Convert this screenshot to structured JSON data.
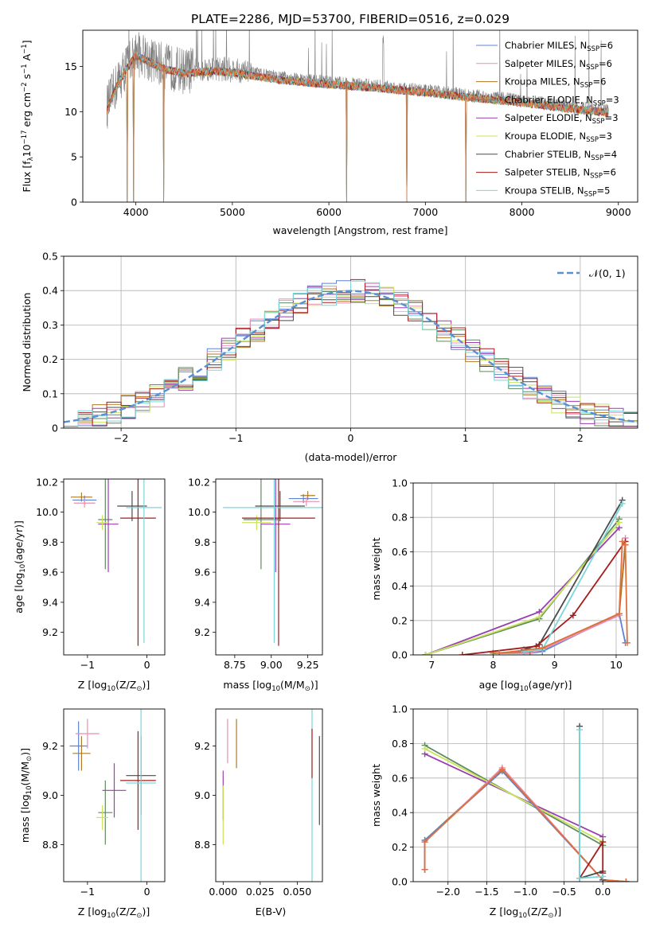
{
  "figure_title": "PLATE=2286, MJD=53700, FIBERID=0516, z=0.029",
  "colors": {
    "Chabrier MILES": "#5b84d6",
    "Salpeter MILES": "#e88fb4",
    "Kroupa MILES": "#b07a24",
    "Chabrier ELODIE": "#5f8a5f",
    "Salpeter ELODIE": "#9a3fb0",
    "Kroupa ELODIE": "#c9e45a",
    "Chabrier STELIB": "#4a4a4a",
    "Salpeter STELIB": "#a51c1c",
    "Kroupa STELIB": "#7ad6da",
    "data": "#808080",
    "model": "#e0703a",
    "normal": "#5a8fd6",
    "grid": "#b0b0b0"
  },
  "chart_data": [
    {
      "type": "line",
      "title": "PLATE=2286, MJD=53700, FIBERID=0516, z=0.029",
      "xlabel": "wavelength [Angstrom, rest frame]",
      "ylabel": "Flux [f_λ 10^-17 erg cm^-2 s^-1 A^-1]",
      "xlim": [
        3450,
        9200
      ],
      "ylim": [
        0,
        19
      ],
      "xticks": [
        4000,
        5000,
        6000,
        7000,
        8000,
        9000
      ],
      "yticks": [
        0,
        5,
        10,
        15
      ],
      "grid": false,
      "legend": "top-right",
      "series": [
        {
          "name": "Chabrier MILES, N_SSP=6"
        },
        {
          "name": "Salpeter MILES, N_SSP=6"
        },
        {
          "name": "Kroupa MILES, N_SSP=6"
        },
        {
          "name": "Chabrier ELODIE, N_SSP=3"
        },
        {
          "name": "Salpeter ELODIE, N_SSP=3"
        },
        {
          "name": "Kroupa ELODIE, N_SSP=3"
        },
        {
          "name": "Chabrier STELIB, N_SSP=4"
        },
        {
          "name": "Salpeter STELIB, N_SSP=6"
        },
        {
          "name": "Kroupa STELIB, N_SSP=5"
        }
      ],
      "continuum": {
        "x": [
          3700,
          3800,
          3900,
          4000,
          4100,
          4300,
          4500,
          4800,
          5000,
          5500,
          6000,
          6500,
          7000,
          7500,
          8000,
          8500,
          8900
        ],
        "y": [
          10.5,
          13.0,
          15.0,
          16.5,
          16.0,
          15.0,
          14.5,
          14.8,
          14.6,
          13.8,
          13.3,
          12.9,
          12.4,
          11.8,
          11.3,
          10.6,
          10.2
        ]
      },
      "model_drops": [
        3910,
        3975,
        4290,
        6185,
        6810,
        7420
      ]
    },
    {
      "type": "line",
      "xlabel": "(data-model)/error",
      "ylabel": "Normed distribution",
      "xlim": [
        -2.5,
        2.5
      ],
      "ylim": [
        0,
        0.5
      ],
      "xticks": [
        -2,
        -1,
        0,
        1,
        2
      ],
      "yticks": [
        0.0,
        0.1,
        0.2,
        0.3,
        0.4,
        0.5
      ],
      "grid": true,
      "legend": "top-right",
      "reference": {
        "name": "𝒩(0, 1)",
        "mu": 0,
        "sigma": 1
      },
      "bins": 40
    },
    {
      "type": "scatter",
      "xlabel": "Z [log10(Z/Z⊙)]",
      "ylabel": "age [log10(age/yr)]",
      "xlim": [
        -1.4,
        0.3
      ],
      "ylim": [
        9.05,
        10.22
      ],
      "xticks": [
        -1,
        0
      ],
      "yticks": [
        9.2,
        9.4,
        9.6,
        9.8,
        10.0,
        10.2
      ],
      "points": [
        {
          "x": -1.1,
          "xerr": 0.18,
          "y": 10.1,
          "yerr": 0.03,
          "color": "#b07a24"
        },
        {
          "x": -1.05,
          "xerr": 0.2,
          "y": 10.08,
          "yerr": 0.03,
          "color": "#5b84d6"
        },
        {
          "x": -1.05,
          "xerr": 0.18,
          "y": 10.06,
          "yerr": 0.03,
          "color": "#e88fb4"
        },
        {
          "x": -0.7,
          "xerr": 0.12,
          "y": 9.95,
          "yerr": 0.33,
          "color": "#5f8a5f"
        },
        {
          "x": -0.65,
          "xerr": 0.17,
          "y": 9.92,
          "yerr": 0.32,
          "color": "#9a3fb0"
        },
        {
          "x": -0.75,
          "xerr": 0.1,
          "y": 9.93,
          "yerr": 0.05,
          "color": "#c9e45a"
        },
        {
          "x": -0.25,
          "xerr": 0.25,
          "y": 10.04,
          "yerr": 0.1,
          "color": "#4a4a4a"
        },
        {
          "x": -0.15,
          "xerr": 0.3,
          "y": 9.96,
          "yerr": 0.85,
          "color": "#a51c1c"
        },
        {
          "x": -0.05,
          "xerr": 0.3,
          "y": 10.03,
          "yerr": 0.9,
          "color": "#7ad6da"
        }
      ]
    },
    {
      "type": "scatter",
      "xlabel": "mass [log10(M/M⊙)]",
      "xlim": [
        8.62,
        9.35
      ],
      "ylim": [
        9.05,
        10.22
      ],
      "xticks": [
        8.75,
        9.0,
        9.25
      ],
      "yticks": [
        9.2,
        9.4,
        9.6,
        9.8,
        10.0,
        10.2
      ],
      "points": [
        {
          "x": 9.25,
          "xerr": 0.05,
          "y": 10.11,
          "yerr": 0.03,
          "color": "#b07a24"
        },
        {
          "x": 9.22,
          "xerr": 0.1,
          "y": 10.09,
          "yerr": 0.03,
          "color": "#5b84d6"
        },
        {
          "x": 9.24,
          "xerr": 0.09,
          "y": 10.07,
          "yerr": 0.03,
          "color": "#e88fb4"
        },
        {
          "x": 8.93,
          "xerr": 0.12,
          "y": 9.95,
          "yerr": 0.33,
          "color": "#5f8a5f"
        },
        {
          "x": 9.03,
          "xerr": 0.1,
          "y": 9.92,
          "yerr": 0.32,
          "color": "#9a3fb0"
        },
        {
          "x": 8.9,
          "xerr": 0.1,
          "y": 9.93,
          "yerr": 0.05,
          "color": "#c9e45a"
        },
        {
          "x": 9.06,
          "xerr": 0.17,
          "y": 10.04,
          "yerr": 0.1,
          "color": "#4a4a4a"
        },
        {
          "x": 9.05,
          "xerr": 0.25,
          "y": 9.96,
          "yerr": 0.85,
          "color": "#a51c1c"
        },
        {
          "x": 9.02,
          "xerr": 0.35,
          "y": 10.03,
          "yerr": 0.9,
          "color": "#7ad6da"
        }
      ]
    },
    {
      "type": "line",
      "xlabel": "age [log10(age/yr)]",
      "ylabel": "mass weight",
      "xlim": [
        6.7,
        10.35
      ],
      "ylim": [
        0,
        1.0
      ],
      "xticks": [
        7,
        8,
        9,
        10
      ],
      "yticks": [
        0.0,
        0.2,
        0.4,
        0.6,
        0.8,
        1.0
      ],
      "grid": true,
      "series": [
        {
          "color": "#5b84d6",
          "x": [
            8.0,
            8.6,
            8.8,
            10.05,
            10.15
          ],
          "y": [
            0.01,
            0.01,
            0.02,
            0.24,
            0.07
          ]
        },
        {
          "color": "#e88fb4",
          "x": [
            8.0,
            8.6,
            8.8,
            10.05,
            10.15
          ],
          "y": [
            0.01,
            0.01,
            0.03,
            0.23,
            0.68
          ]
        },
        {
          "color": "#b07a24",
          "x": [
            8.0,
            8.6,
            8.8,
            10.05,
            10.15
          ],
          "y": [
            0.01,
            0.02,
            0.04,
            0.24,
            0.64
          ]
        },
        {
          "color": "#5f8a5f",
          "x": [
            6.9,
            8.75,
            10.05
          ],
          "y": [
            0.0,
            0.21,
            0.79
          ]
        },
        {
          "color": "#9a3fb0",
          "x": [
            6.9,
            8.75,
            10.05
          ],
          "y": [
            0.0,
            0.25,
            0.74
          ]
        },
        {
          "color": "#c9e45a",
          "x": [
            6.9,
            8.75,
            10.05
          ],
          "y": [
            0.0,
            0.22,
            0.77
          ]
        },
        {
          "color": "#4a4a4a",
          "x": [
            8.5,
            8.75,
            10.1
          ],
          "y": [
            0.03,
            0.06,
            0.9
          ]
        },
        {
          "color": "#a51c1c",
          "x": [
            7.5,
            8.7,
            9.3,
            10.15
          ],
          "y": [
            0.0,
            0.05,
            0.23,
            0.66
          ]
        },
        {
          "color": "#7ad6da",
          "x": [
            8.5,
            8.8,
            10.1
          ],
          "y": [
            0.02,
            0.03,
            0.88
          ]
        },
        {
          "color": "#e0703a",
          "x": [
            8.1,
            8.8,
            10.05,
            10.1,
            10.15,
            10.18
          ],
          "y": [
            0.01,
            0.04,
            0.24,
            0.66,
            0.64,
            0.07
          ]
        }
      ]
    },
    {
      "type": "scatter",
      "xlabel": "Z [log10(Z/Z⊙)]",
      "ylabel": "mass [log10(M/M⊙)]",
      "xlim": [
        -1.4,
        0.3
      ],
      "ylim": [
        8.65,
        9.35
      ],
      "xticks": [
        -1,
        0
      ],
      "yticks": [
        8.8,
        9.0,
        9.2
      ],
      "points": [
        {
          "x": -1.1,
          "xerr": 0.15,
          "y": 9.17,
          "yerr": 0.07,
          "color": "#b07a24"
        },
        {
          "x": -1.15,
          "xerr": 0.15,
          "y": 9.2,
          "yerr": 0.1,
          "color": "#5b84d6"
        },
        {
          "x": -1.0,
          "xerr": 0.2,
          "y": 9.25,
          "yerr": 0.06,
          "color": "#e88fb4"
        },
        {
          "x": -0.7,
          "xerr": 0.12,
          "y": 8.93,
          "yerr": 0.13,
          "color": "#5f8a5f"
        },
        {
          "x": -0.55,
          "xerr": 0.2,
          "y": 9.02,
          "yerr": 0.11,
          "color": "#9a3fb0"
        },
        {
          "x": -0.75,
          "xerr": 0.1,
          "y": 8.91,
          "yerr": 0.05,
          "color": "#c9e45a"
        },
        {
          "x": -0.1,
          "xerr": 0.25,
          "y": 9.08,
          "yerr": 0.16,
          "color": "#4a4a4a"
        },
        {
          "x": -0.15,
          "xerr": 0.3,
          "y": 9.06,
          "yerr": 0.2,
          "color": "#a51c1c"
        },
        {
          "x": -0.1,
          "xerr": 0.25,
          "y": 9.05,
          "yerr": 0.4,
          "color": "#7ad6da"
        }
      ]
    },
    {
      "type": "scatter",
      "xlabel": "E(B-V)",
      "xlim": [
        -0.005,
        0.067
      ],
      "ylim": [
        8.65,
        9.35
      ],
      "xticks": [
        0.0,
        0.025,
        0.05
      ],
      "yticks": [
        8.8,
        9.0,
        9.2
      ],
      "points": [
        {
          "x": 0.0,
          "y": 9.0,
          "yerr": 0.1,
          "color": "#9a3fb0"
        },
        {
          "x": 0.0,
          "y": 8.92,
          "yerr": 0.12,
          "color": "#c9e45a"
        },
        {
          "x": 0.003,
          "y": 9.22,
          "yerr": 0.09,
          "color": "#e88fb4"
        },
        {
          "x": 0.009,
          "y": 9.21,
          "yerr": 0.1,
          "color": "#b07a24"
        },
        {
          "x": 0.06,
          "y": 9.07,
          "yerr": 0.42,
          "color": "#7ad6da"
        },
        {
          "x": 0.06,
          "y": 9.17,
          "yerr": 0.1,
          "color": "#a51c1c"
        },
        {
          "x": 0.065,
          "y": 9.06,
          "yerr": 0.18,
          "color": "#4a4a4a"
        }
      ]
    },
    {
      "type": "line",
      "xlabel": "Z [log10(Z/Z⊙)]",
      "ylabel": "mass weight",
      "xlim": [
        -2.45,
        0.45
      ],
      "ylim": [
        0,
        1.0
      ],
      "xticks": [
        -2.0,
        -1.5,
        -1.0,
        -0.5,
        0.0
      ],
      "yticks": [
        0.0,
        0.2,
        0.4,
        0.6,
        0.8,
        1.0
      ],
      "grid": true,
      "series": [
        {
          "color": "#5f8a5f",
          "x": [
            -2.3,
            0.0
          ],
          "y": [
            0.79,
            0.21
          ]
        },
        {
          "color": "#9a3fb0",
          "x": [
            -2.3,
            0.0
          ],
          "y": [
            0.74,
            0.26
          ]
        },
        {
          "color": "#c9e45a",
          "x": [
            -2.3,
            0.0
          ],
          "y": [
            0.77,
            0.23
          ]
        },
        {
          "color": "#b07a24",
          "x": [
            -2.3,
            -2.3,
            -1.3,
            0.0,
            0.3
          ],
          "y": [
            0.07,
            0.24,
            0.65,
            0.01,
            0.0
          ]
        },
        {
          "color": "#e88fb4",
          "x": [
            -2.3,
            -2.3,
            -1.3,
            0.0,
            0.3
          ],
          "y": [
            0.07,
            0.23,
            0.66,
            0.01,
            0.0
          ]
        },
        {
          "color": "#5b84d6",
          "x": [
            -2.3,
            -2.3,
            -1.3,
            0.0,
            0.3
          ],
          "y": [
            0.07,
            0.24,
            0.64,
            0.01,
            0.0
          ]
        },
        {
          "color": "#e0703a",
          "x": [
            -2.3,
            -2.3,
            -1.3,
            0.0,
            0.3
          ],
          "y": [
            0.07,
            0.23,
            0.65,
            0.01,
            0.0
          ]
        },
        {
          "color": "#4a4a4a",
          "x": [
            -0.3,
            -0.3,
            0.0,
            0.0
          ],
          "y": [
            0.9,
            0.02,
            0.06,
            0.01
          ]
        },
        {
          "color": "#a51c1c",
          "x": [
            -0.3,
            0.0,
            0.0
          ],
          "y": [
            0.02,
            0.23,
            0.05
          ]
        },
        {
          "color": "#7ad6da",
          "x": [
            -0.3,
            -0.3,
            0.0
          ],
          "y": [
            0.88,
            0.02,
            0.03
          ]
        }
      ]
    }
  ]
}
